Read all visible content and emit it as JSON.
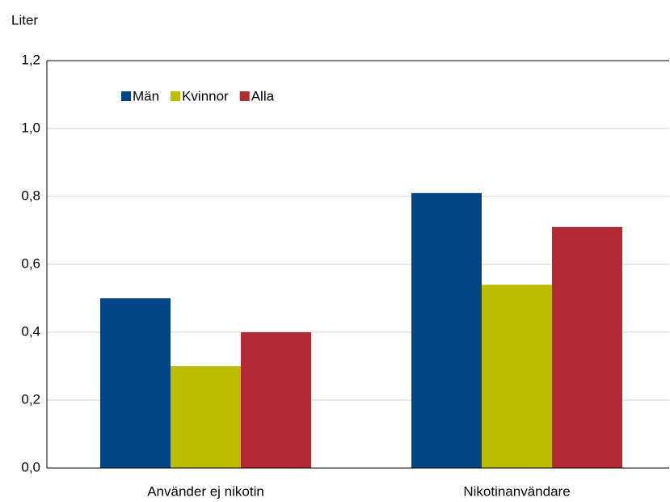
{
  "chart_data": {
    "type": "bar",
    "y_label": "Liter",
    "categories": [
      "Använder ej nikotin",
      "Nikotinanvändare"
    ],
    "series": [
      {
        "name": "Män",
        "color": "#004586",
        "values": [
          0.5,
          0.81
        ]
      },
      {
        "name": "Kvinnor",
        "color": "#bdbd00",
        "values": [
          0.3,
          0.54
        ]
      },
      {
        "name": "Alla",
        "color": "#b22a33",
        "values": [
          0.4,
          0.71
        ]
      }
    ],
    "ylim": [
      0,
      1.2
    ],
    "yticks": [
      {
        "value": 0,
        "label": "0,0"
      },
      {
        "value": 0.2,
        "label": "0,2"
      },
      {
        "value": 0.4,
        "label": "0,4"
      },
      {
        "value": 0.6,
        "label": "0,6"
      },
      {
        "value": 0.8,
        "label": "0,8"
      },
      {
        "value": 1.0,
        "label": "1,0"
      },
      {
        "value": 1.2,
        "label": "1,2"
      }
    ],
    "grid": true,
    "legend": "top-left"
  }
}
